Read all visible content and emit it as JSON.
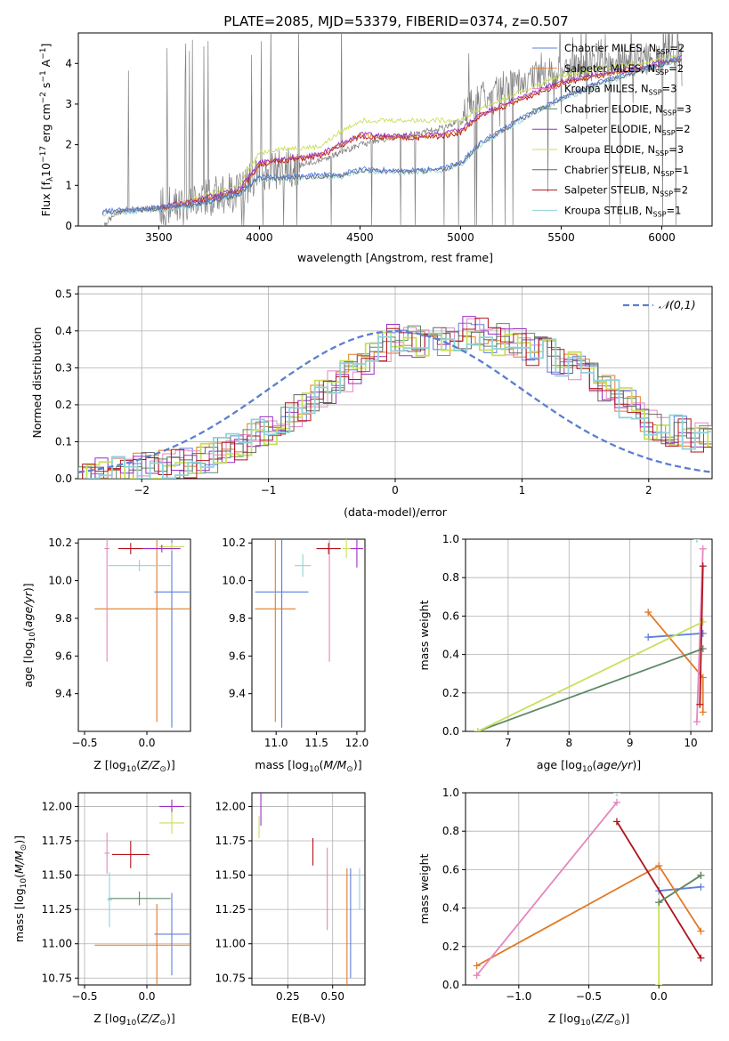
{
  "title": "PLATE=2085, MJD=53379, FIBERID=0374, z=0.507",
  "colors": {
    "chabrier_miles": "#5b7fe0",
    "salpeter_miles": "#e07b28",
    "kroupa_miles": "#e685be",
    "chabrier_elodie": "#5e8a66",
    "salpeter_elodie": "#9b2fc2",
    "kroupa_elodie": "#c8e05a",
    "chabrier_stelib": "#666666",
    "salpeter_stelib": "#b0141c",
    "kroupa_stelib": "#8fd3da",
    "data": "#808080"
  },
  "legend": [
    {
      "key": "chabrier_miles",
      "base": "Chabrier MILES, N",
      "sub": "SSP",
      "tail": "=2"
    },
    {
      "key": "salpeter_miles",
      "base": "Salpeter MILES, N",
      "sub": "SSP",
      "tail": "=2"
    },
    {
      "key": "kroupa_miles",
      "base": "Kroupa MILES, N",
      "sub": "SSP",
      "tail": "=3"
    },
    {
      "key": "chabrier_elodie",
      "base": "Chabrier ELODIE, N",
      "sub": "SSP",
      "tail": "=3"
    },
    {
      "key": "salpeter_elodie",
      "base": "Salpeter ELODIE, N",
      "sub": "SSP",
      "tail": "=2"
    },
    {
      "key": "kroupa_elodie",
      "base": "Kroupa ELODIE, N",
      "sub": "SSP",
      "tail": "=3"
    },
    {
      "key": "chabrier_stelib",
      "base": "Chabrier STELIB, N",
      "sub": "SSP",
      "tail": "=1"
    },
    {
      "key": "salpeter_stelib",
      "base": "Salpeter STELIB, N",
      "sub": "SSP",
      "tail": "=2"
    },
    {
      "key": "kroupa_stelib",
      "base": "Kroupa STELIB, N",
      "sub": "SSP",
      "tail": "=1"
    }
  ],
  "chart_data": [
    {
      "type": "line",
      "xlabel": "wavelength [Angstrom, rest frame]",
      "ylabel": "Flux [f_λ 10^-17 erg cm^-2 s^-1 A^-1]",
      "xlim": [
        3100,
        6250
      ],
      "ylim": [
        0,
        4.75
      ],
      "xticks": [
        3500,
        4000,
        4500,
        5000,
        5500,
        6000
      ],
      "yticks": [
        0,
        1,
        2,
        3,
        4
      ],
      "data_trend": {
        "x": [
          3220,
          3300,
          3500,
          3700,
          3900,
          4000,
          4100,
          4300,
          4400,
          4500,
          4700,
          4900,
          5000,
          5050,
          5200,
          5400,
          5600,
          5800,
          6000,
          6100
        ],
        "y": [
          0.0,
          0.35,
          0.45,
          0.7,
          0.85,
          1.3,
          1.4,
          1.6,
          1.8,
          2.0,
          2.2,
          2.4,
          2.6,
          3.0,
          3.4,
          3.7,
          3.9,
          4.05,
          4.15,
          4.2
        ]
      },
      "model_groups": [
        {
          "keys": [
            "kroupa_elodie"
          ],
          "x": [
            3500,
            3700,
            3900,
            4000,
            4100,
            4300,
            4400,
            4500,
            4700,
            4900,
            5000,
            5100,
            5300,
            5500,
            5700,
            5900,
            6100
          ],
          "y": [
            0.4,
            0.7,
            1.0,
            1.8,
            1.9,
            1.95,
            2.3,
            2.6,
            2.6,
            2.6,
            2.6,
            2.9,
            3.3,
            3.7,
            3.9,
            4.0,
            4.2
          ]
        },
        {
          "keys": [
            "salpeter_stelib",
            "salpeter_miles",
            "salpeter_elodie"
          ],
          "x": [
            3500,
            3700,
            3900,
            4000,
            4100,
            4300,
            4400,
            4500,
            4700,
            4900,
            5000,
            5100,
            5300,
            5500,
            5700,
            5900,
            6100
          ],
          "y": [
            0.4,
            0.6,
            0.85,
            1.5,
            1.6,
            1.7,
            1.95,
            2.2,
            2.15,
            2.2,
            2.3,
            2.7,
            3.1,
            3.5,
            3.7,
            3.85,
            4.1
          ]
        },
        {
          "keys": [
            "kroupa_stelib",
            "chabrier_stelib",
            "chabrier_miles"
          ],
          "x": [
            3220,
            3500,
            3700,
            3900,
            4000,
            4100,
            4300,
            4400,
            4500,
            4700,
            4900,
            5000,
            5100,
            5300,
            5500,
            5700,
            5900,
            6100
          ],
          "y": [
            0.3,
            0.4,
            0.5,
            0.75,
            1.15,
            1.15,
            1.2,
            1.2,
            1.35,
            1.3,
            1.35,
            1.5,
            2.0,
            2.6,
            3.1,
            3.5,
            3.8,
            4.1
          ]
        }
      ]
    },
    {
      "type": "step",
      "xlabel": "(data-model)/error",
      "ylabel": "Normed distribution",
      "xlim": [
        -2.5,
        2.5
      ],
      "ylim": [
        0,
        0.52
      ],
      "xticks": [
        -2,
        -1,
        0,
        1,
        2
      ],
      "yticks": [
        0.0,
        0.1,
        0.2,
        0.3,
        0.4,
        0.5
      ],
      "gaussian_label": "𝒩(0,1)",
      "hist_envelope": {
        "x": [
          -2.5,
          -2.0,
          -1.5,
          -1.0,
          -0.5,
          0.0,
          0.3,
          0.6,
          1.0,
          1.5,
          2.0,
          2.5
        ],
        "y": [
          0.01,
          0.025,
          0.05,
          0.13,
          0.25,
          0.38,
          0.36,
          0.4,
          0.36,
          0.3,
          0.15,
          0.1
        ]
      }
    },
    {
      "type": "errorbar",
      "xlabel": "Z [log10(Z/Z⊙)]",
      "ylabel": "age  [log10(age/yr)]",
      "xlim": [
        -0.55,
        0.35
      ],
      "ylim": [
        9.2,
        10.22
      ],
      "xticks": [
        -0.5,
        0.0
      ],
      "yticks": [
        9.4,
        9.6,
        9.8,
        10.0,
        10.2
      ],
      "points": [
        {
          "key": "chabrier_miles",
          "x": 0.2,
          "y": 9.94,
          "xe": 0.14,
          "ye": 0.72
        },
        {
          "key": "salpeter_miles",
          "x": 0.08,
          "y": 9.85,
          "xe": 0.5,
          "ye": 0.6
        },
        {
          "key": "kroupa_miles",
          "x": -0.32,
          "y": 10.17,
          "xe": 0.02,
          "ye": 0.6
        },
        {
          "key": "kroupa_stelib",
          "x": -0.06,
          "y": 10.08,
          "xe": 0.25,
          "ye": 0.03
        },
        {
          "key": "salpeter_stelib",
          "x": -0.13,
          "y": 10.17,
          "xe": 0.1,
          "ye": 0.03
        },
        {
          "key": "kroupa_elodie",
          "x": 0.2,
          "y": 10.18,
          "xe": 0.1,
          "ye": 0.02
        },
        {
          "key": "salpeter_elodie",
          "x": 0.12,
          "y": 10.17,
          "xe": 0.15,
          "ye": 0.02
        }
      ]
    },
    {
      "type": "errorbar",
      "xlabel": "mass [log10(M/M⊙)]",
      "ylabel": "",
      "xlim": [
        10.7,
        12.1
      ],
      "ylim": [
        9.2,
        10.22
      ],
      "xticks": [
        11.0,
        11.5,
        12.0
      ],
      "yticks": [
        9.4,
        9.6,
        9.8,
        10.0,
        10.2
      ],
      "points": [
        {
          "key": "chabrier_miles",
          "x": 11.07,
          "y": 9.94,
          "xe": 0.33,
          "ye": 0.72
        },
        {
          "key": "salpeter_miles",
          "x": 10.99,
          "y": 9.85,
          "xe": 0.25,
          "ye": 0.6
        },
        {
          "key": "kroupa_miles",
          "x": 11.66,
          "y": 10.17,
          "xe": 0.02,
          "ye": 0.6
        },
        {
          "key": "kroupa_stelib",
          "x": 11.33,
          "y": 10.08,
          "xe": 0.1,
          "ye": 0.06
        },
        {
          "key": "salpeter_stelib",
          "x": 11.65,
          "y": 10.17,
          "xe": 0.15,
          "ye": 0.03
        },
        {
          "key": "kroupa_elodie",
          "x": 11.87,
          "y": 10.17,
          "xe": 0.05,
          "ye": 0.05
        },
        {
          "key": "salpeter_elodie",
          "x": 12.0,
          "y": 10.17,
          "xe": 0.08,
          "ye": 0.1
        }
      ]
    },
    {
      "type": "line",
      "xlabel": "age  [log10(age/yr)]",
      "ylabel": "mass weight",
      "xlim": [
        6.3,
        10.35
      ],
      "ylim": [
        0,
        1.0
      ],
      "xticks": [
        7,
        8,
        9,
        10
      ],
      "yticks": [
        0.0,
        0.2,
        0.4,
        0.6,
        0.8,
        1.0
      ],
      "series": [
        {
          "key": "chabrier_miles",
          "x": [
            9.3,
            10.2
          ],
          "y": [
            0.49,
            0.51
          ]
        },
        {
          "key": "salpeter_miles",
          "x": [
            9.3,
            10.2,
            10.2
          ],
          "y": [
            0.62,
            0.28,
            0.1
          ]
        },
        {
          "key": "kroupa_miles",
          "x": [
            10.1,
            10.2
          ],
          "y": [
            0.05,
            0.95
          ]
        },
        {
          "key": "chabrier_elodie",
          "x": [
            6.5,
            10.2
          ],
          "y": [
            0.0,
            0.43
          ]
        },
        {
          "key": "kroupa_elodie",
          "x": [
            6.5,
            10.2
          ],
          "y": [
            0.0,
            0.57
          ]
        },
        {
          "key": "salpeter_stelib",
          "x": [
            10.15,
            10.2
          ],
          "y": [
            0.14,
            0.86
          ]
        },
        {
          "key": "kroupa_stelib",
          "x": [
            10.1
          ],
          "y": [
            1.0
          ]
        }
      ]
    },
    {
      "type": "errorbar",
      "xlabel": "Z [log10(Z/Z⊙)]",
      "ylabel": "mass [log10(M/M⊙)]",
      "xlim": [
        -0.55,
        0.35
      ],
      "ylim": [
        10.7,
        12.1
      ],
      "xticks": [
        -0.5,
        0.0
      ],
      "yticks": [
        10.75,
        11.0,
        11.25,
        11.5,
        11.75,
        12.0
      ],
      "points": [
        {
          "key": "chabrier_miles",
          "x": 0.2,
          "y": 11.07,
          "xe": 0.14,
          "ye": 0.3
        },
        {
          "key": "salpeter_miles",
          "x": 0.08,
          "y": 10.99,
          "xe": 0.5,
          "ye": 0.3
        },
        {
          "key": "kroupa_miles",
          "x": -0.32,
          "y": 11.66,
          "xe": 0.02,
          "ye": 0.15
        },
        {
          "key": "chabrier_elodie",
          "x": -0.06,
          "y": 11.33,
          "xe": 0.25,
          "ye": 0.05
        },
        {
          "key": "kroupa_stelib",
          "x": -0.3,
          "y": 11.32,
          "xe": 0.02,
          "ye": 0.2
        },
        {
          "key": "salpeter_stelib",
          "x": -0.13,
          "y": 11.65,
          "xe": 0.15,
          "ye": 0.1
        },
        {
          "key": "salpeter_elodie",
          "x": 0.2,
          "y": 12.0,
          "xe": 0.1,
          "ye": 0.05
        },
        {
          "key": "kroupa_elodie",
          "x": 0.2,
          "y": 11.88,
          "xe": 0.1,
          "ye": 0.08
        }
      ]
    },
    {
      "type": "errorbar",
      "xlabel": "E(B-V)",
      "ylabel": "",
      "xlim": [
        0.05,
        0.68
      ],
      "ylim": [
        10.7,
        12.1
      ],
      "xticks": [
        0.25,
        0.5
      ],
      "yticks": [
        10.75,
        11.0,
        11.25,
        11.5,
        11.75,
        12.0
      ],
      "points": [
        {
          "key": "chabrier_miles",
          "x": 0.6,
          "y": 11.15,
          "xe": 0.0,
          "ye": 0.4
        },
        {
          "key": "salpeter_miles",
          "x": 0.58,
          "y": 11.1,
          "xe": 0.0,
          "ye": 0.45
        },
        {
          "key": "kroupa_miles",
          "x": 0.47,
          "y": 11.4,
          "xe": 0.0,
          "ye": 0.3
        },
        {
          "key": "salpeter_stelib",
          "x": 0.39,
          "y": 11.67,
          "xe": 0.0,
          "ye": 0.1
        },
        {
          "key": "kroupa_stelib",
          "x": 0.65,
          "y": 11.4,
          "xe": 0.0,
          "ye": 0.15
        },
        {
          "key": "salpeter_elodie",
          "x": 0.1,
          "y": 11.98,
          "xe": 0.0,
          "ye": 0.12
        },
        {
          "key": "kroupa_elodie",
          "x": 0.09,
          "y": 11.85,
          "xe": 0.0,
          "ye": 0.08
        }
      ]
    },
    {
      "type": "line",
      "xlabel": "Z [log10(Z/Z⊙)]",
      "ylabel": "mass weight",
      "xlim": [
        -1.38,
        0.38
      ],
      "ylim": [
        0,
        1.0
      ],
      "xticks": [
        -1.0,
        -0.5,
        0.0
      ],
      "yticks": [
        0.0,
        0.2,
        0.4,
        0.6,
        0.8,
        1.0
      ],
      "series": [
        {
          "key": "chabrier_miles",
          "x": [
            0.0,
            0.3
          ],
          "y": [
            0.49,
            0.51
          ]
        },
        {
          "key": "salpeter_miles",
          "x": [
            -1.3,
            0.0,
            0.3
          ],
          "y": [
            0.1,
            0.62,
            0.28
          ]
        },
        {
          "key": "kroupa_miles",
          "x": [
            -1.3,
            -0.3
          ],
          "y": [
            0.05,
            0.95
          ]
        },
        {
          "key": "salpeter_stelib",
          "x": [
            -0.3,
            0.3
          ],
          "y": [
            0.85,
            0.14
          ]
        },
        {
          "key": "salpeter_elodie",
          "x": [
            0.0,
            0.3
          ],
          "y": [
            0.43,
            0.57
          ]
        },
        {
          "key": "kroupa_elodie",
          "x": [
            0.0,
            0.0,
            0.3
          ],
          "y": [
            0.0,
            0.43,
            0.57
          ]
        },
        {
          "key": "chabrier_elodie",
          "x": [
            0.0,
            0.3
          ],
          "y": [
            0.43,
            0.57
          ]
        },
        {
          "key": "kroupa_stelib",
          "x": [
            -0.3
          ],
          "y": [
            1.0
          ]
        }
      ]
    }
  ]
}
